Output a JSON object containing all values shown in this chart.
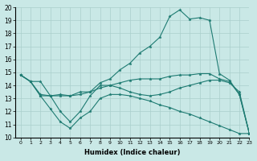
{
  "xlabel": "Humidex (Indice chaleur)",
  "xlim": [
    -0.5,
    23
  ],
  "ylim": [
    10,
    20
  ],
  "yticks": [
    10,
    11,
    12,
    13,
    14,
    15,
    16,
    17,
    18,
    19,
    20
  ],
  "xticks": [
    0,
    1,
    2,
    3,
    4,
    5,
    6,
    7,
    8,
    9,
    10,
    11,
    12,
    13,
    14,
    15,
    16,
    17,
    18,
    19,
    20,
    21,
    22,
    23
  ],
  "background_color": "#c9e8e6",
  "grid_color": "#aacfcc",
  "line_color": "#1e7b72",
  "lines": [
    {
      "x": [
        0,
        1,
        2,
        3,
        4,
        5,
        6,
        7,
        8,
        9,
        10,
        11,
        12,
        13,
        14,
        15,
        16,
        17,
        18,
        19,
        20,
        21,
        22,
        23
      ],
      "y": [
        14.8,
        14.3,
        14.3,
        13.2,
        13.2,
        13.2,
        13.5,
        13.5,
        14.2,
        14.5,
        15.2,
        15.7,
        16.5,
        17.0,
        17.7,
        19.3,
        19.8,
        19.1,
        19.2,
        19.0,
        14.9,
        14.4,
        13.3,
        10.3
      ]
    },
    {
      "x": [
        0,
        1,
        2,
        3,
        4,
        5,
        6,
        7,
        8,
        9,
        10,
        11,
        12,
        13,
        14,
        15,
        16,
        17,
        18,
        19,
        20,
        21,
        22,
        23
      ],
      "y": [
        14.8,
        14.3,
        13.3,
        13.2,
        13.3,
        13.2,
        13.3,
        13.5,
        13.8,
        14.0,
        14.2,
        14.4,
        14.5,
        14.5,
        14.5,
        14.7,
        14.8,
        14.8,
        14.9,
        14.9,
        14.5,
        14.3,
        13.3,
        10.3
      ]
    },
    {
      "x": [
        0,
        1,
        2,
        3,
        4,
        5,
        6,
        7,
        8,
        9,
        10,
        11,
        12,
        13,
        14,
        15,
        16,
        17,
        18,
        19,
        20,
        21,
        22,
        23
      ],
      "y": [
        14.8,
        14.3,
        13.2,
        12.2,
        11.2,
        10.7,
        11.5,
        12.0,
        13.0,
        13.3,
        13.3,
        13.2,
        13.0,
        12.8,
        12.5,
        12.3,
        12.0,
        11.8,
        11.5,
        11.2,
        10.9,
        10.6,
        10.3,
        10.3
      ]
    },
    {
      "x": [
        0,
        1,
        2,
        3,
        4,
        5,
        6,
        7,
        8,
        9,
        10,
        11,
        12,
        13,
        14,
        15,
        16,
        17,
        18,
        19,
        20,
        21,
        22,
        23
      ],
      "y": [
        14.8,
        14.3,
        13.2,
        13.2,
        12.0,
        11.2,
        12.0,
        13.2,
        14.0,
        14.0,
        13.8,
        13.5,
        13.3,
        13.2,
        13.3,
        13.5,
        13.8,
        14.0,
        14.2,
        14.4,
        14.4,
        14.2,
        13.5,
        10.3
      ]
    }
  ]
}
